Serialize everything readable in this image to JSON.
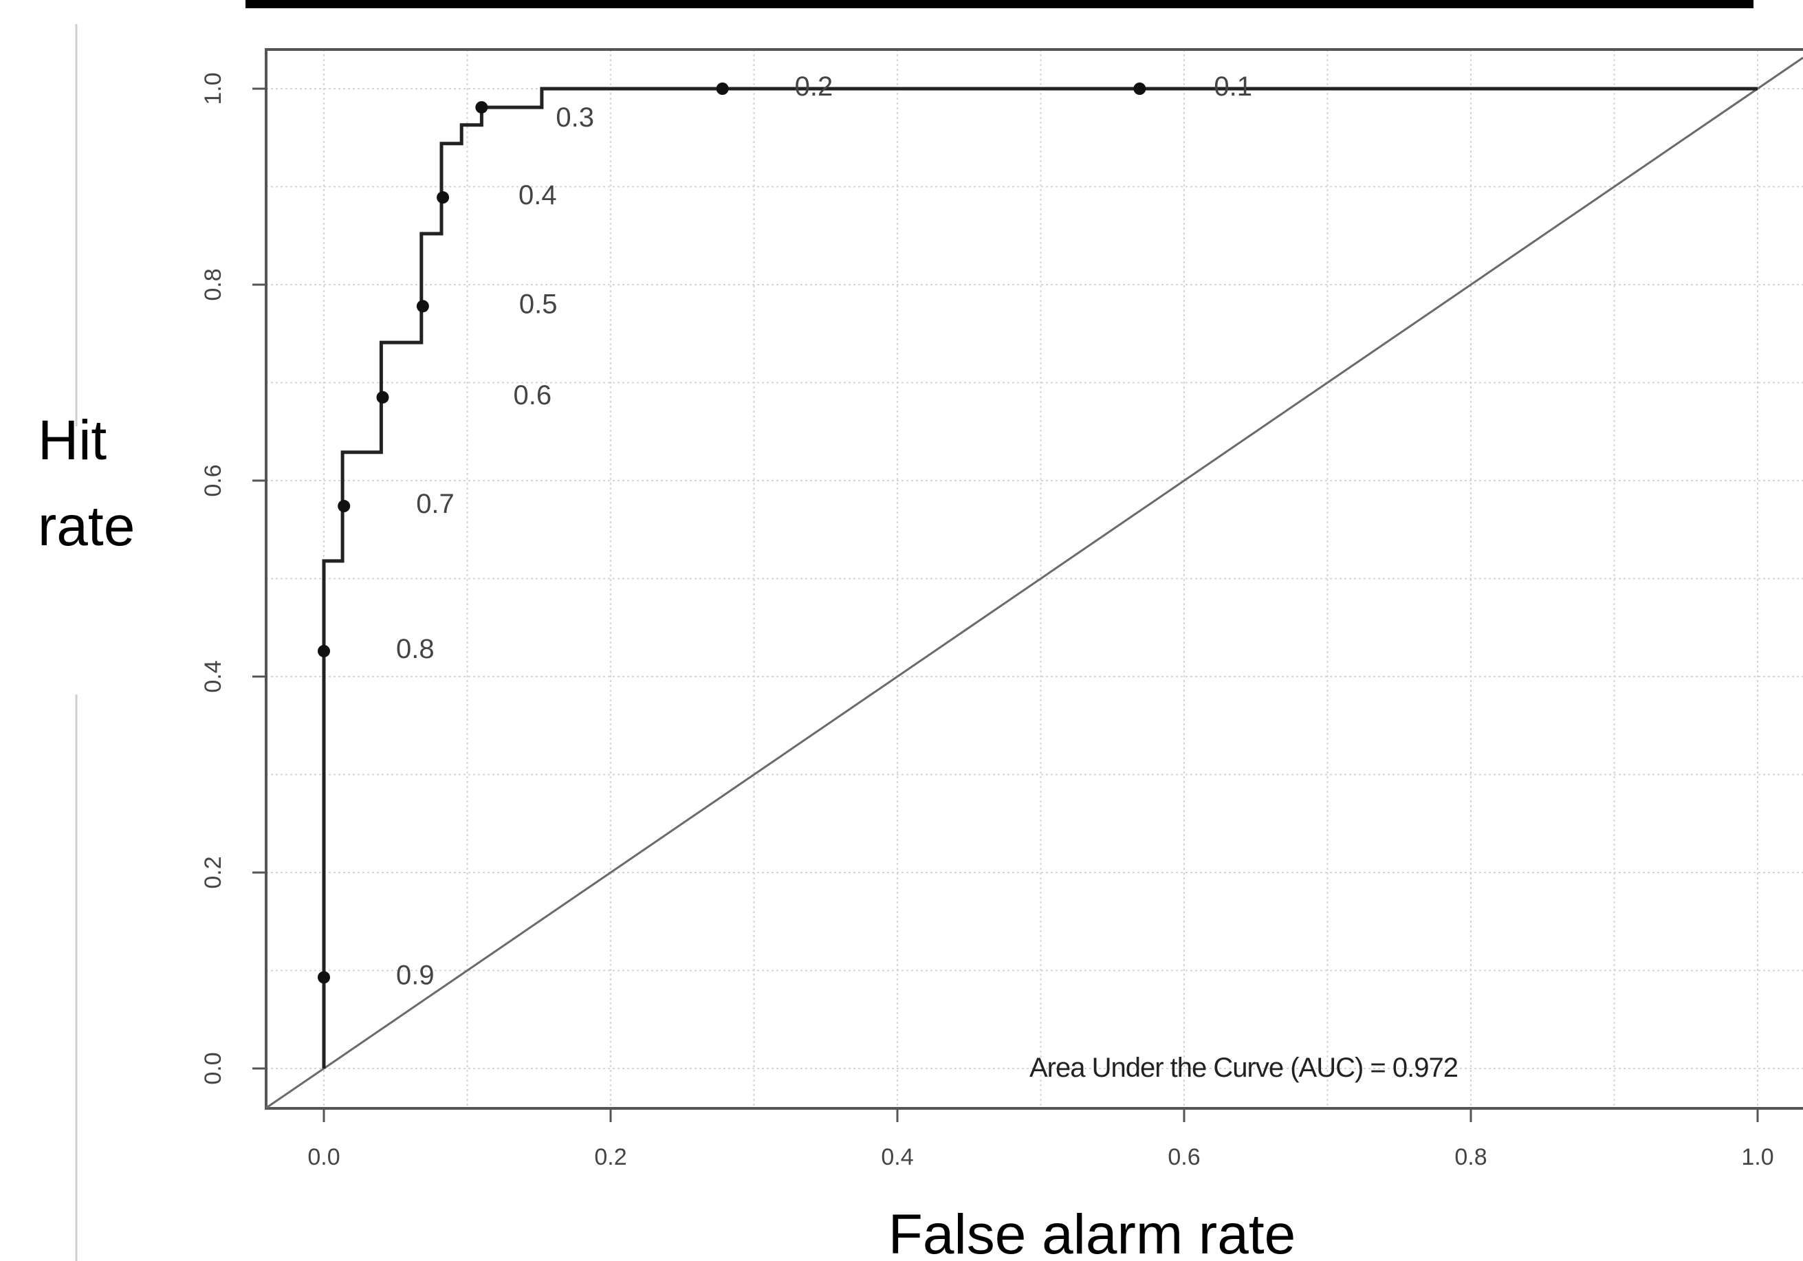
{
  "chart_data": {
    "type": "line",
    "xlabel": "False alarm rate",
    "ylabel_lines": [
      "Hit",
      "rate"
    ],
    "xlim": [
      0.0,
      1.0
    ],
    "ylim": [
      0.0,
      1.0
    ],
    "x_ticks": [
      "0.0",
      "0.2",
      "0.4",
      "0.6",
      "0.8",
      "1.0"
    ],
    "y_ticks": [
      "0.0",
      "0.2",
      "0.4",
      "0.6",
      "0.8",
      "1.0"
    ],
    "grid": true,
    "roc_curve": {
      "x": [
        0.0,
        0.0,
        0.0,
        0.013,
        0.013,
        0.04,
        0.04,
        0.068,
        0.068,
        0.082,
        0.082,
        0.096,
        0.096,
        0.11,
        0.11,
        0.152,
        0.152,
        1.0
      ],
      "y": [
        0.0,
        0.518,
        0.518,
        0.518,
        0.629,
        0.629,
        0.741,
        0.741,
        0.852,
        0.852,
        0.944,
        0.944,
        0.963,
        0.963,
        0.981,
        0.981,
        1.0,
        1.0
      ]
    },
    "thresholds": [
      {
        "label": "0.9",
        "x": 0.0,
        "y": 0.093
      },
      {
        "label": "0.8",
        "x": 0.0,
        "y": 0.426
      },
      {
        "label": "0.7",
        "x": 0.014,
        "y": 0.574
      },
      {
        "label": "0.6",
        "x": 0.041,
        "y": 0.685
      },
      {
        "label": "0.5",
        "x": 0.069,
        "y": 0.778
      },
      {
        "label": "0.4",
        "x": 0.083,
        "y": 0.889
      },
      {
        "label": "0.3",
        "x": 0.11,
        "y": 0.981
      },
      {
        "label": "0.2",
        "x": 0.278,
        "y": 1.0
      },
      {
        "label": "0.1",
        "x": 0.569,
        "y": 1.0
      }
    ],
    "reference_line": {
      "x": [
        0.0,
        1.0
      ],
      "y": [
        0.0,
        1.0
      ]
    },
    "annotation": "Area Under the Curve (AUC) = 0.972",
    "auc": 0.972
  }
}
